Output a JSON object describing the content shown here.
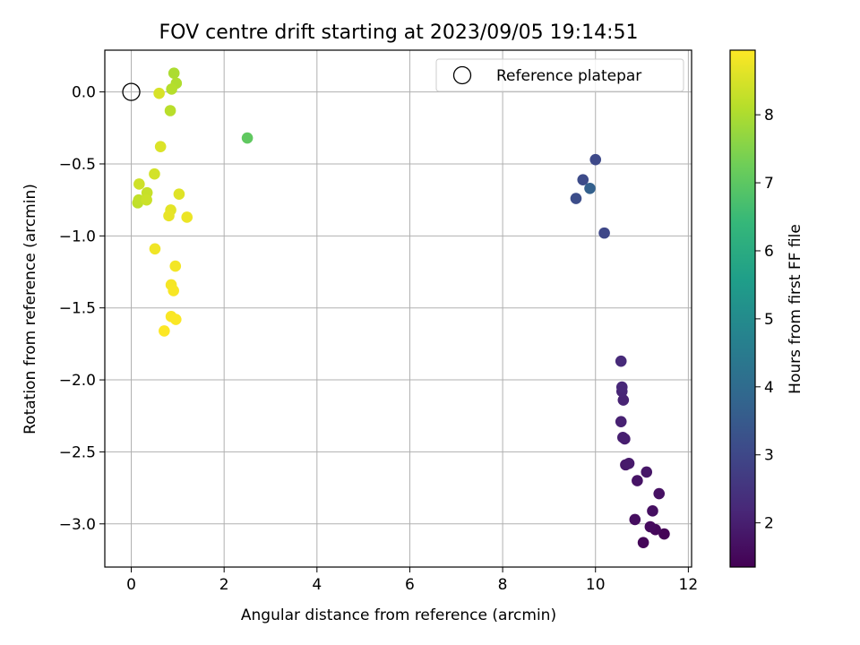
{
  "chart_data": {
    "type": "scatter",
    "title": "FOV centre drift starting at 2023/09/05 19:14:51",
    "xlabel": "Angular distance from reference (arcmin)",
    "ylabel": "Rotation from reference (arcmin)",
    "xlim": [
      -0.57,
      12.07
    ],
    "ylim": [
      -3.3,
      0.29
    ],
    "x_ticks": [
      0,
      2,
      4,
      6,
      8,
      10,
      12
    ],
    "y_ticks": [
      0.0,
      -0.5,
      -1.0,
      -1.5,
      -2.0,
      -2.5,
      -3.0
    ],
    "x_tick_labels": [
      "0",
      "2",
      "4",
      "6",
      "8",
      "10",
      "12"
    ],
    "y_tick_labels": [
      "0.0",
      "−0.5",
      "−1.0",
      "−1.5",
      "−2.0",
      "−2.5",
      "−3.0"
    ],
    "grid": true,
    "legend": {
      "placement": "top-right",
      "entries": [
        "Reference platepar"
      ]
    },
    "reference_point": {
      "x": 0.0,
      "y": 0.0,
      "marker": "hollow-circle"
    },
    "colorbar": {
      "label": "Hours from first FF file",
      "colormap": "viridis",
      "range": [
        1.35,
        8.95
      ],
      "ticks": [
        2,
        3,
        4,
        5,
        6,
        7,
        8
      ],
      "tick_labels": [
        "2",
        "3",
        "4",
        "5",
        "6",
        "7",
        "8"
      ]
    },
    "points": [
      {
        "x": 11.48,
        "y": -3.07,
        "h": 1.4
      },
      {
        "x": 11.03,
        "y": -3.13,
        "h": 1.45
      },
      {
        "x": 11.29,
        "y": -3.04,
        "h": 1.5
      },
      {
        "x": 11.18,
        "y": -3.02,
        "h": 1.55
      },
      {
        "x": 10.85,
        "y": -2.97,
        "h": 1.6
      },
      {
        "x": 11.23,
        "y": -2.91,
        "h": 1.65
      },
      {
        "x": 11.37,
        "y": -2.79,
        "h": 1.7
      },
      {
        "x": 10.9,
        "y": -2.7,
        "h": 1.75
      },
      {
        "x": 11.1,
        "y": -2.64,
        "h": 1.8
      },
      {
        "x": 10.65,
        "y": -2.59,
        "h": 1.85
      },
      {
        "x": 10.72,
        "y": -2.58,
        "h": 1.9
      },
      {
        "x": 10.63,
        "y": -2.41,
        "h": 1.95
      },
      {
        "x": 10.59,
        "y": -2.4,
        "h": 2.0
      },
      {
        "x": 10.55,
        "y": -2.29,
        "h": 2.05
      },
      {
        "x": 10.6,
        "y": -2.14,
        "h": 2.1
      },
      {
        "x": 10.57,
        "y": -2.08,
        "h": 2.15
      },
      {
        "x": 10.57,
        "y": -2.05,
        "h": 2.2
      },
      {
        "x": 10.55,
        "y": -1.87,
        "h": 2.25
      },
      {
        "x": 10.19,
        "y": -0.98,
        "h": 3.0
      },
      {
        "x": 10.0,
        "y": -0.47,
        "h": 3.05
      },
      {
        "x": 9.73,
        "y": -0.61,
        "h": 3.1
      },
      {
        "x": 9.58,
        "y": -0.74,
        "h": 3.15
      },
      {
        "x": 9.88,
        "y": -0.67,
        "h": 3.7
      },
      {
        "x": 2.5,
        "y": -0.32,
        "h": 7.05
      },
      {
        "x": 0.92,
        "y": 0.13,
        "h": 8.0
      },
      {
        "x": 0.97,
        "y": 0.06,
        "h": 8.05
      },
      {
        "x": 0.87,
        "y": 0.02,
        "h": 8.1
      },
      {
        "x": 0.84,
        "y": -0.13,
        "h": 8.15
      },
      {
        "x": 0.14,
        "y": -0.77,
        "h": 8.2
      },
      {
        "x": 0.16,
        "y": -0.75,
        "h": 8.25
      },
      {
        "x": 0.34,
        "y": -0.7,
        "h": 8.3
      },
      {
        "x": 0.33,
        "y": -0.75,
        "h": 8.35
      },
      {
        "x": 0.17,
        "y": -0.64,
        "h": 8.4
      },
      {
        "x": 0.5,
        "y": -0.57,
        "h": 8.45
      },
      {
        "x": 0.6,
        "y": -0.01,
        "h": 8.5
      },
      {
        "x": 0.63,
        "y": -0.38,
        "h": 8.55
      },
      {
        "x": 1.03,
        "y": -0.71,
        "h": 8.6
      },
      {
        "x": 0.85,
        "y": -0.82,
        "h": 8.65
      },
      {
        "x": 0.81,
        "y": -0.86,
        "h": 8.7
      },
      {
        "x": 1.2,
        "y": -0.87,
        "h": 8.75
      },
      {
        "x": 0.51,
        "y": -1.09,
        "h": 8.8
      },
      {
        "x": 0.95,
        "y": -1.21,
        "h": 8.83
      },
      {
        "x": 0.86,
        "y": -1.34,
        "h": 8.86
      },
      {
        "x": 0.91,
        "y": -1.38,
        "h": 8.88
      },
      {
        "x": 0.86,
        "y": -1.56,
        "h": 8.9
      },
      {
        "x": 0.96,
        "y": -1.58,
        "h": 8.92
      },
      {
        "x": 0.71,
        "y": -1.66,
        "h": 8.94
      }
    ]
  }
}
